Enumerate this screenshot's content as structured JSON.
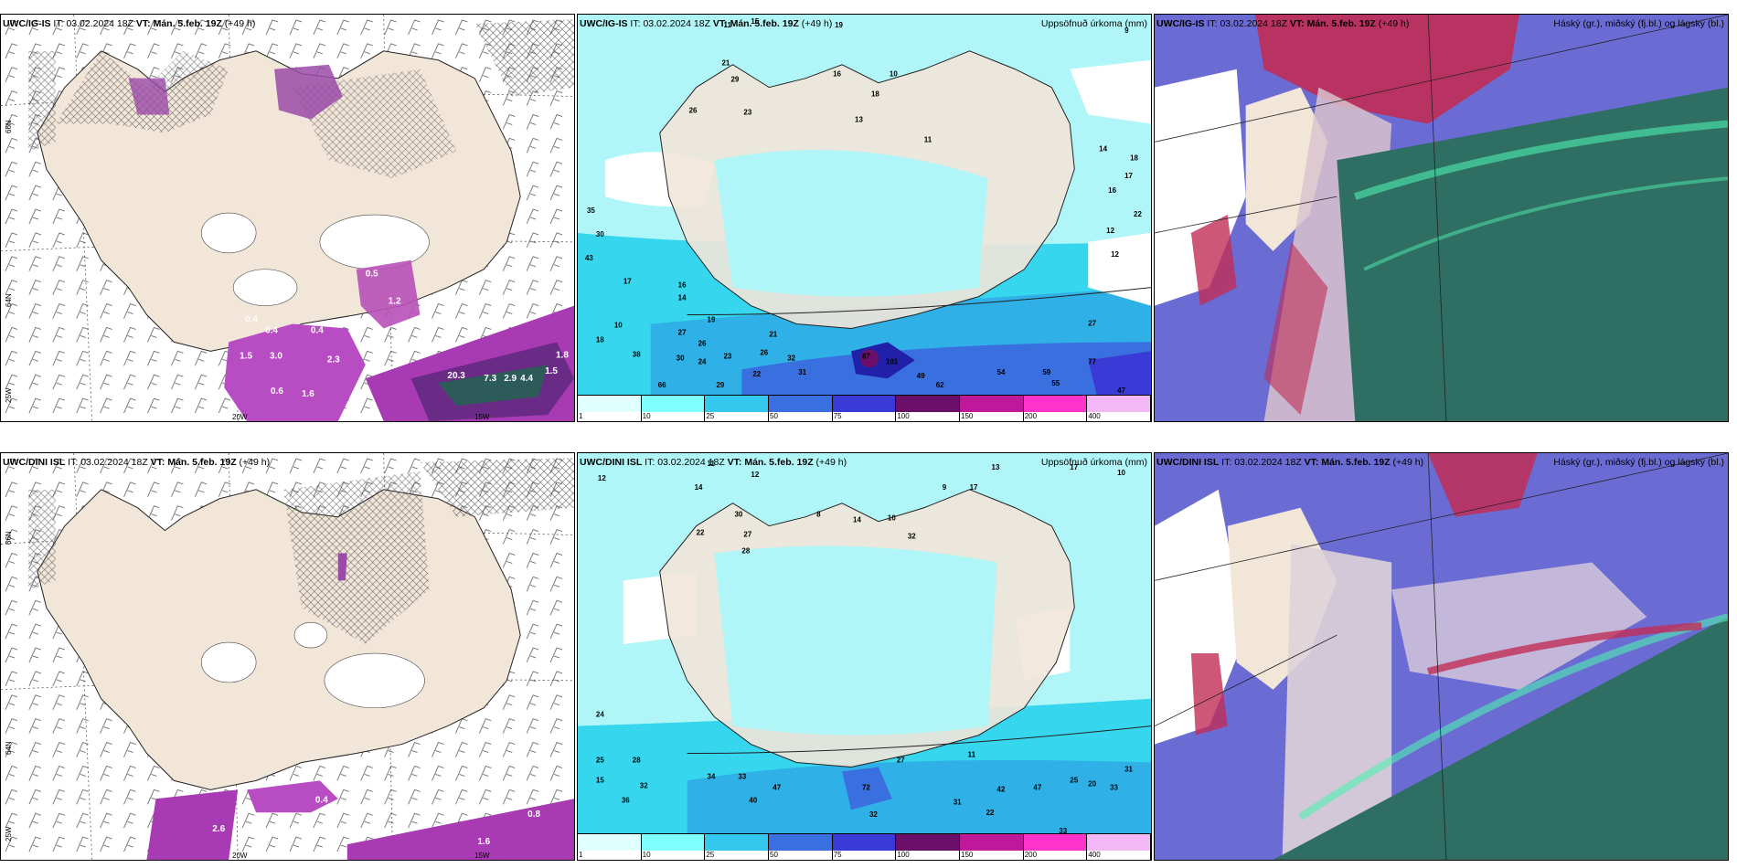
{
  "rows": [
    {
      "model": "UWC/IG-IS",
      "it_label": "IT:",
      "it_value": "03.02.2024 18Z",
      "vt_label": "VT:",
      "vt_value": "Mán. 5.feb. 19Z",
      "lead": "(+49 h)"
    },
    {
      "model": "UWC/DINI ISL",
      "it_label": "IT:",
      "it_value": "03.02.2024 18Z",
      "vt_label": "VT:",
      "vt_value": "Mán. 5.feb. 19Z",
      "lead": "(+49 h)"
    }
  ],
  "precip_title": "Uppsöfnuð úrkoma (mm)",
  "cloud_title": "Háský (gr.), miðský (fj.bl.) og lágský (bl.)",
  "axis_labels": {
    "lat_top": "66N",
    "lat_mid": "64N",
    "lon_left": "25W",
    "lon_20": "20W",
    "lon_15": "15W"
  },
  "colorbar": {
    "ticks": [
      "1",
      "10",
      "25",
      "50",
      "75",
      "100",
      "150",
      "200",
      "400"
    ],
    "colors": [
      "#e0ffff",
      "#7fffff",
      "#35c8ee",
      "#3a6fe0",
      "#3a3ad6",
      "#2020a8",
      "#6b0f6b",
      "#c0189a",
      "#ff33cc",
      "#f3b8f5"
    ]
  },
  "colors": {
    "land": "#f2e6d9",
    "sea_precip": "#b0f6f8",
    "purple_precip": "#a640b8",
    "cloud_high": "#6b6bd4",
    "cloud_low": "#2f6e62",
    "cloud_mid": "#c22d55"
  },
  "values_top_left": [
    "0.5",
    "1.2",
    "0.4",
    "0.4",
    "0.4",
    "3.0",
    "1.5",
    "2.3",
    "0.6",
    "1.6",
    "0.3",
    "0.3",
    "1.8",
    "20.3",
    "7.3",
    "2.9",
    "4.4",
    "1.5"
  ],
  "values_bottom_left": [
    "0.4",
    "2.6",
    "0.8",
    "1.6"
  ],
  "values_top_mid": [
    "9",
    "11",
    "15",
    "19",
    "21",
    "29",
    "23",
    "16",
    "13",
    "10",
    "18",
    "26",
    "11",
    "12",
    "14",
    "35",
    "30",
    "43",
    "17",
    "16",
    "18",
    "14",
    "10",
    "27",
    "26",
    "38",
    "30",
    "24",
    "19",
    "23",
    "32",
    "26",
    "21",
    "29",
    "22",
    "31",
    "66",
    "49",
    "87",
    "101",
    "62",
    "54",
    "55",
    "77",
    "59",
    "27",
    "12",
    "17",
    "16",
    "18",
    "22",
    "47"
  ],
  "values_bottom_mid": [
    "11",
    "12",
    "14",
    "17",
    "13",
    "30",
    "27",
    "28",
    "22",
    "32",
    "8",
    "12",
    "10",
    "14",
    "9",
    "17",
    "10",
    "24",
    "25",
    "28",
    "15",
    "32",
    "36",
    "34",
    "33",
    "47",
    "40",
    "72",
    "27",
    "32",
    "42",
    "47",
    "22",
    "31",
    "33",
    "25",
    "31",
    "20",
    "33",
    "11"
  ]
}
